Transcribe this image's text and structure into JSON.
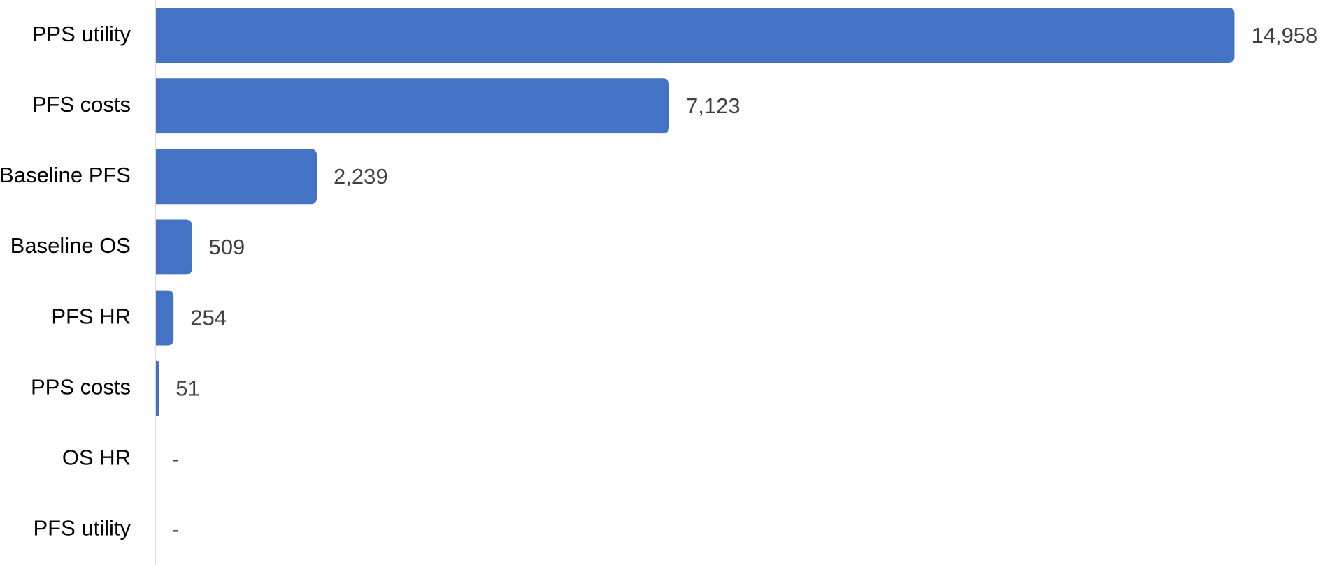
{
  "chart_data": {
    "type": "hbar",
    "categories": [
      "PPS utility",
      "PFS costs",
      "Baseline PFS",
      "Baseline OS",
      "PFS HR",
      "PPS costs",
      "OS HR",
      "PFS utility"
    ],
    "values": [
      14958,
      7123,
      2239,
      509,
      254,
      51,
      0,
      0
    ],
    "value_labels": [
      "14,958",
      "7,123",
      "2,239",
      "509",
      "254",
      "51",
      "-",
      "-"
    ],
    "color": "#4472c4",
    "xlim": [
      0,
      16000
    ]
  }
}
